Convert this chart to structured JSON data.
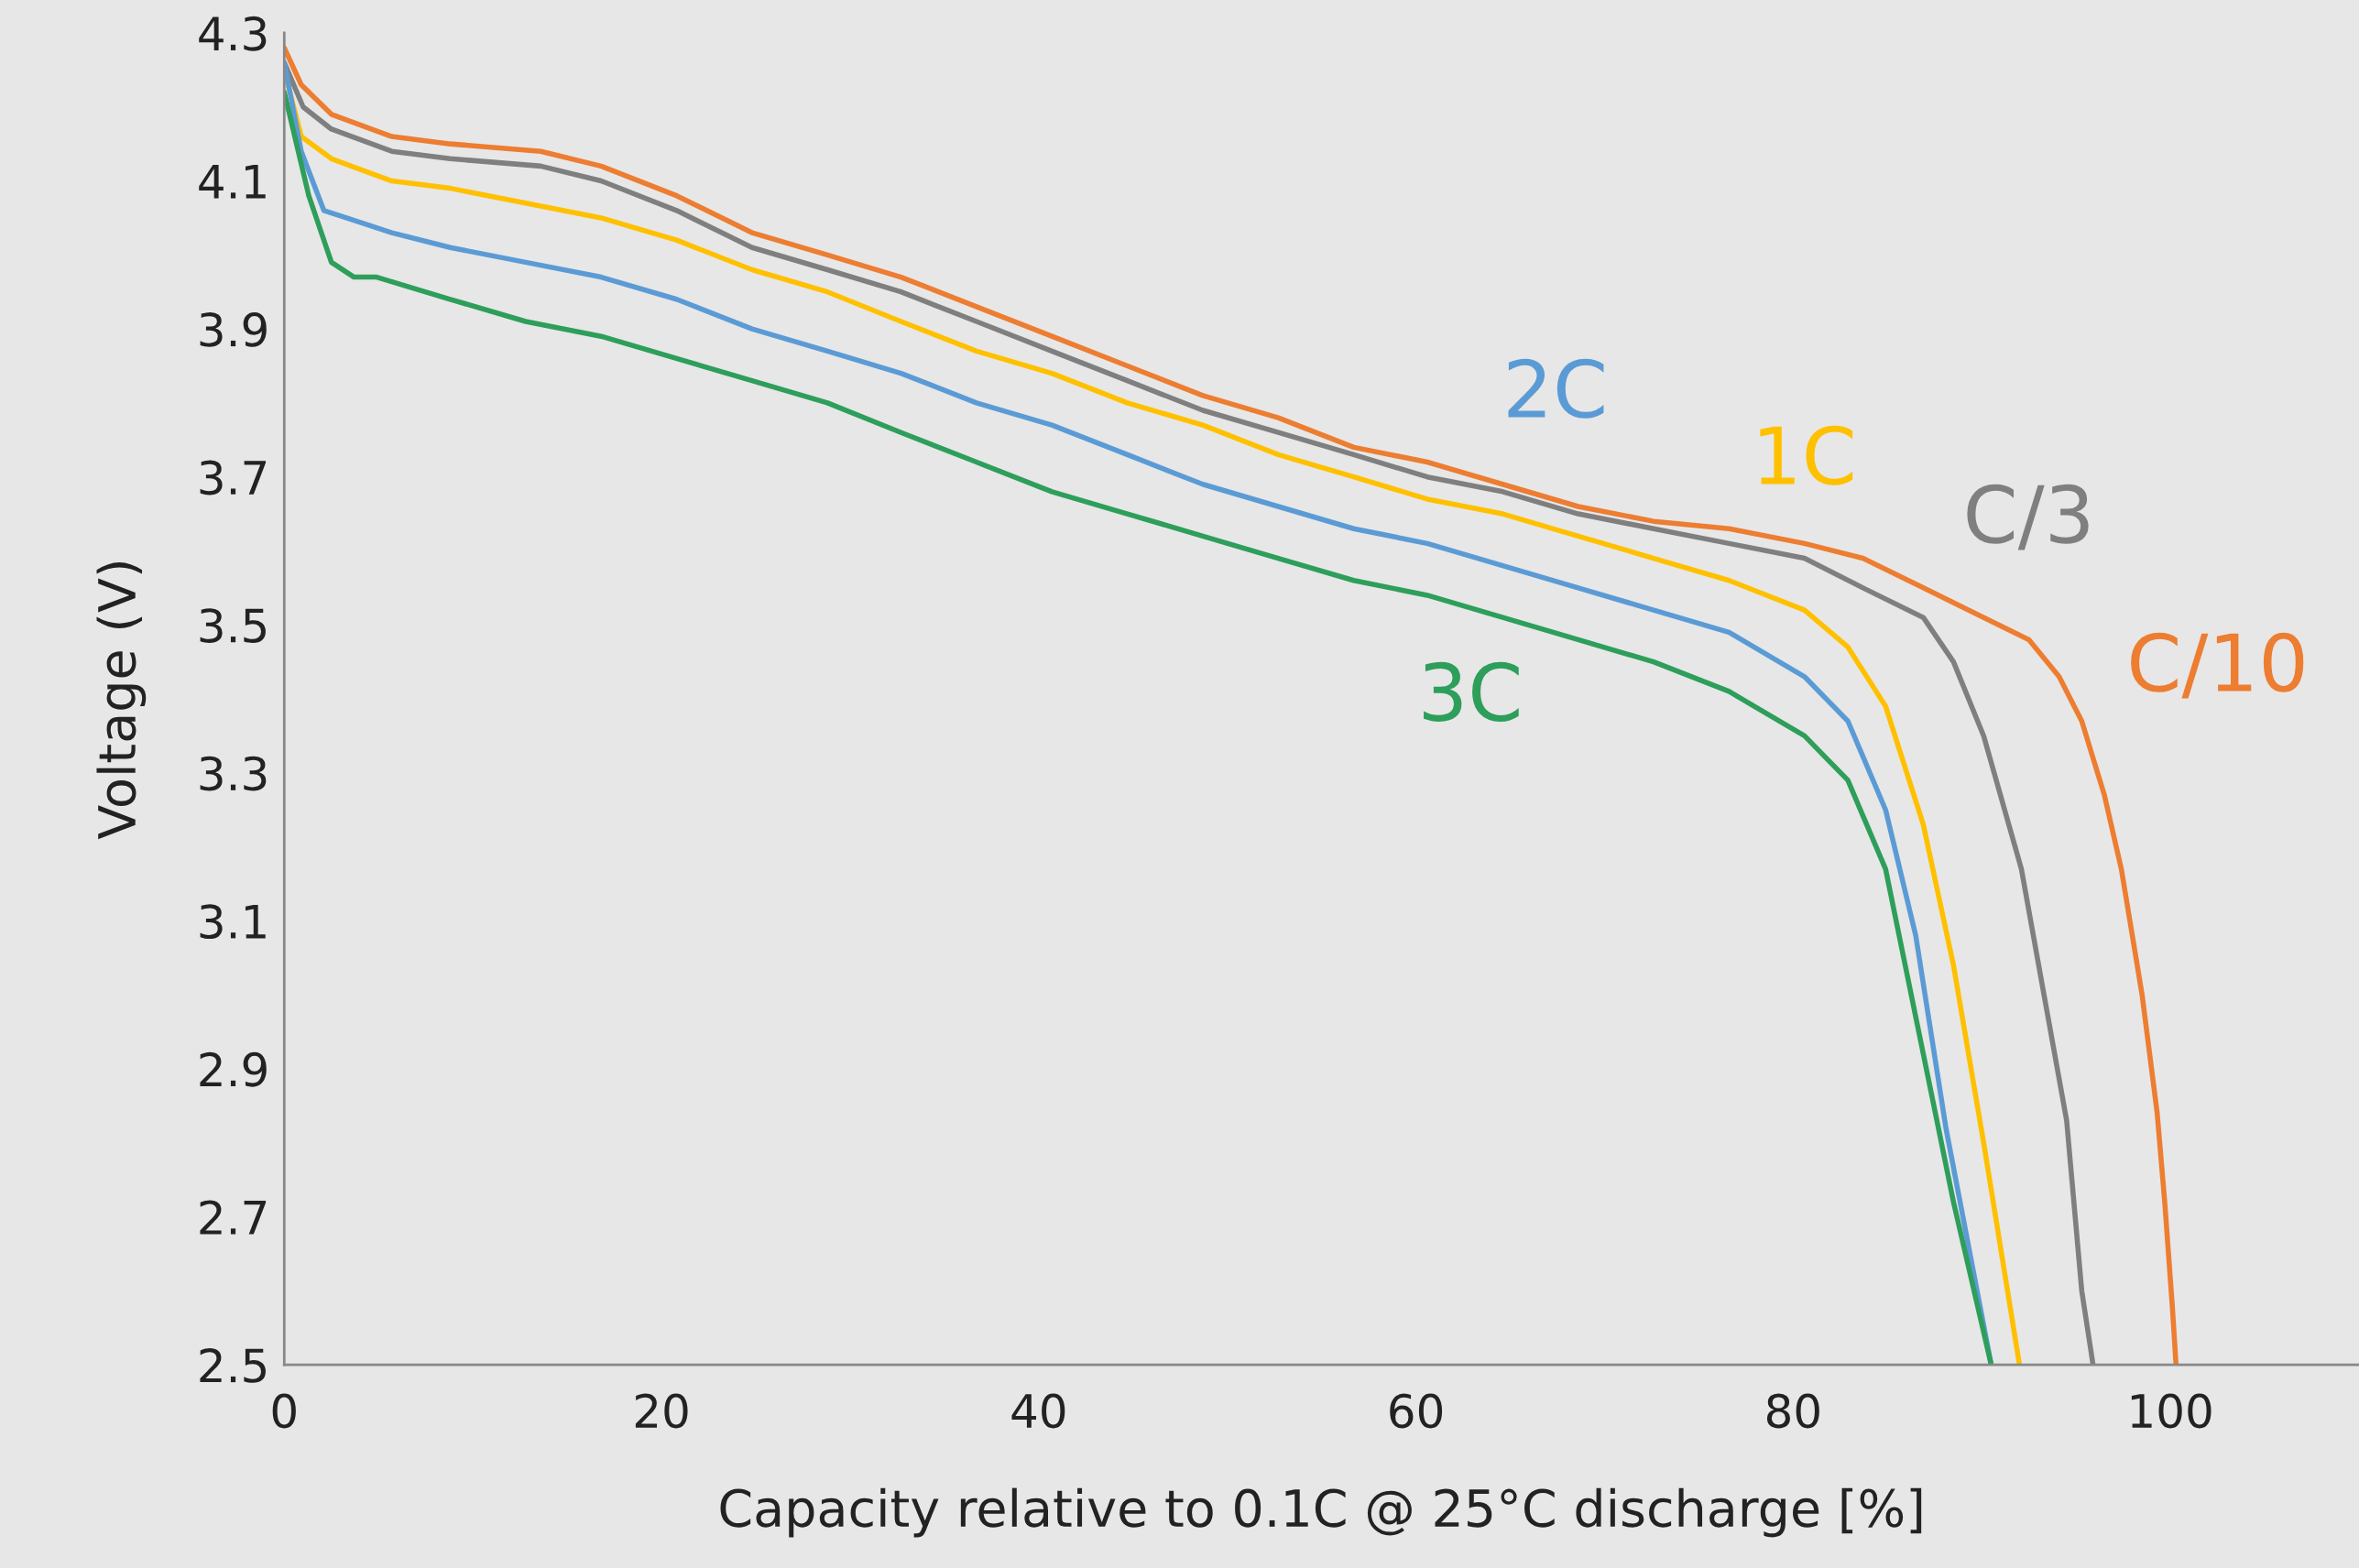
{
  "chart_data": {
    "type": "line",
    "xlabel": "Capacity relative to 0.1C @ 25°C discharge [%]",
    "ylabel": "Voltage (V)",
    "xlim": [
      0,
      110
    ],
    "xticks": [
      0,
      20,
      40,
      60,
      80,
      100
    ],
    "ylim": [
      2.5,
      4.3
    ],
    "yticks": [
      2.5,
      2.7,
      2.9,
      3.1,
      3.3,
      3.5,
      3.7,
      3.9,
      4.1,
      4.3
    ],
    "grid": false,
    "legend": false,
    "marker": "none",
    "line_style": "solid",
    "series": [
      {
        "name": "C/10",
        "color": "#ed7d31",
        "x": [
          0,
          0.9,
          2.5,
          5.7,
          8.8,
          13.6,
          16.8,
          20.8,
          24.8,
          28.8,
          32.7,
          36.7,
          40.7,
          44.7,
          48.7,
          52.7,
          56.7,
          60.6,
          64.6,
          68.6,
          72.6,
          76.6,
          80.6,
          83.7,
          86.9,
          90.1,
          92.5,
          94.1,
          95.3,
          96.5,
          97.4,
          98.5,
          99.3,
          99.7,
          100.1,
          100.3
        ],
        "values": [
          4.28,
          4.23,
          4.19,
          4.16,
          4.15,
          4.14,
          4.12,
          4.08,
          4.03,
          4.0,
          3.97,
          3.93,
          3.89,
          3.85,
          3.81,
          3.78,
          3.74,
          3.72,
          3.69,
          3.66,
          3.64,
          3.63,
          3.61,
          3.59,
          3.55,
          3.51,
          3.48,
          3.43,
          3.37,
          3.27,
          3.17,
          3.0,
          2.84,
          2.72,
          2.58,
          2.5
        ]
      },
      {
        "name": "C/3",
        "color": "#7f7f7f",
        "x": [
          0,
          1,
          2.5,
          5.7,
          8.8,
          13.6,
          16.8,
          20.8,
          24.8,
          28.8,
          32.7,
          36.7,
          40.7,
          44.7,
          48.7,
          52.7,
          56.7,
          60.6,
          64.6,
          68.6,
          72.6,
          76.6,
          80.6,
          83.7,
          86.9,
          88.5,
          90.1,
          92.1,
          93.3,
          94.5,
          95.3,
          95.9
        ],
        "values": [
          4.26,
          4.2,
          4.17,
          4.14,
          4.13,
          4.12,
          4.1,
          4.06,
          4.01,
          3.98,
          3.95,
          3.91,
          3.87,
          3.83,
          3.79,
          3.76,
          3.73,
          3.7,
          3.68,
          3.65,
          3.63,
          3.61,
          3.59,
          3.55,
          3.51,
          3.45,
          3.35,
          3.17,
          3.0,
          2.83,
          2.6,
          2.5
        ]
      },
      {
        "name": "1C",
        "color": "#ffc000",
        "x": [
          0,
          0.9,
          2.5,
          5.7,
          8.8,
          12.8,
          16.8,
          20.8,
          24.8,
          28.8,
          32.7,
          36.7,
          40.7,
          44.7,
          48.7,
          52.7,
          56.7,
          60.6,
          64.6,
          68.6,
          72.6,
          76.6,
          80.6,
          82.9,
          84.9,
          86.9,
          88.5,
          90.1,
          92.0
        ],
        "values": [
          4.25,
          4.16,
          4.13,
          4.1,
          4.09,
          4.07,
          4.05,
          4.02,
          3.98,
          3.95,
          3.91,
          3.87,
          3.84,
          3.8,
          3.77,
          3.73,
          3.7,
          3.67,
          3.65,
          3.62,
          3.59,
          3.56,
          3.52,
          3.47,
          3.39,
          3.23,
          3.04,
          2.8,
          2.5
        ]
      },
      {
        "name": "2C",
        "color": "#5b9bd5",
        "x": [
          0,
          0.9,
          2.1,
          3.3,
          5.7,
          8.8,
          12.8,
          16.8,
          20.8,
          24.8,
          28.8,
          32.7,
          36.7,
          40.7,
          44.7,
          48.7,
          52.7,
          56.7,
          60.6,
          64.6,
          68.6,
          72.6,
          76.6,
          80.6,
          82.9,
          84.9,
          86.5,
          88.1,
          90.5
        ],
        "values": [
          4.26,
          4.14,
          4.06,
          4.05,
          4.03,
          4.01,
          3.99,
          3.97,
          3.94,
          3.9,
          3.87,
          3.84,
          3.8,
          3.77,
          3.73,
          3.69,
          3.66,
          3.63,
          3.61,
          3.58,
          3.55,
          3.52,
          3.49,
          3.43,
          3.37,
          3.25,
          3.08,
          2.82,
          2.5
        ]
      },
      {
        "name": "3C",
        "color": "#2e9e5b",
        "x": [
          0,
          1.3,
          2.5,
          3.7,
          4.9,
          8.8,
          12.8,
          16.8,
          20.8,
          24.8,
          28.8,
          32.7,
          36.7,
          40.7,
          44.7,
          48.7,
          52.7,
          56.7,
          60.6,
          64.6,
          68.6,
          72.6,
          76.6,
          80.6,
          82.9,
          84.9,
          86.9,
          88.5,
          90.5
        ],
        "values": [
          4.22,
          4.08,
          3.99,
          3.97,
          3.97,
          3.94,
          3.91,
          3.89,
          3.86,
          3.83,
          3.8,
          3.76,
          3.72,
          3.68,
          3.65,
          3.62,
          3.59,
          3.56,
          3.54,
          3.51,
          3.48,
          3.45,
          3.41,
          3.35,
          3.29,
          3.17,
          2.92,
          2.72,
          2.5
        ]
      }
    ]
  }
}
